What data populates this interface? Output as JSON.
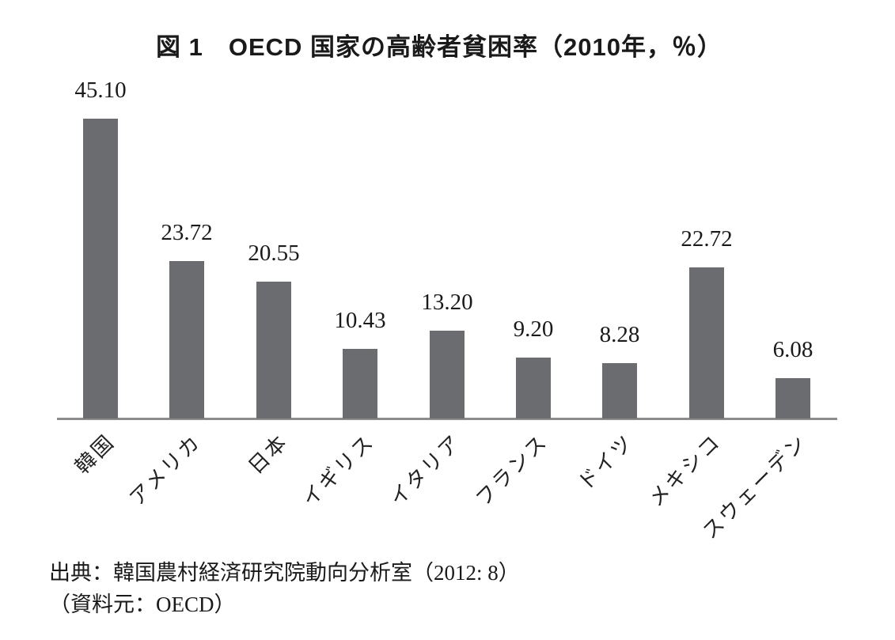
{
  "title": "図 1　OECD 国家の高齢者貧困率（2010年，％）",
  "source": {
    "line1": "出典：韓国農村経済研究院動向分析室（2012: 8）",
    "line2": "（資料元：OECD）"
  },
  "chart_data": {
    "type": "bar",
    "title": "図 1　OECD 国家の高齢者貧困率（2010年，％）",
    "categories": [
      "韓国",
      "アメリカ",
      "日本",
      "イギリス",
      "イタリア",
      "フランス",
      "ドイツ",
      "メキシコ",
      "スウェーデン"
    ],
    "values": [
      45.1,
      23.72,
      20.55,
      10.43,
      13.2,
      9.2,
      8.28,
      22.72,
      6.08
    ],
    "value_labels": [
      "45.10",
      "23.72",
      "20.55",
      "10.43",
      "13.20",
      "9.20",
      "8.28",
      "22.72",
      "6.08"
    ],
    "ylim": [
      0,
      48
    ],
    "xlabel": "",
    "ylabel": "",
    "grid": false,
    "legend": "none",
    "data_labels": "above-bars",
    "tick_label_rotation_deg": -45,
    "bar_color": "#6a6c70",
    "axis_color": "#8c8c8c",
    "text_color": "#1a1a1a"
  }
}
